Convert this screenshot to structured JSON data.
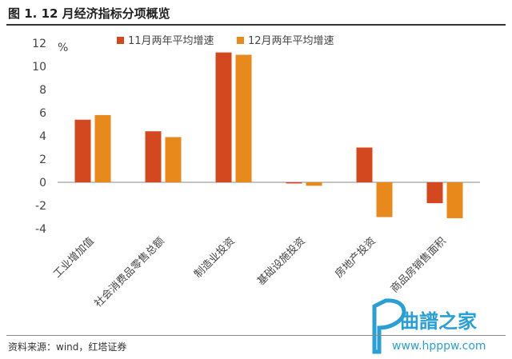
{
  "header": {
    "title": "图 1. 12 月经济指标分项概览"
  },
  "footer": {
    "source": "资料来源：wind，红塔证券"
  },
  "watermark": {
    "name": "曲譜之家",
    "url": "www.hpppw.com"
  },
  "chart_data": {
    "type": "bar",
    "categories": [
      "工业增加值",
      "社会消费品零售总额",
      "制造业投资",
      "基础设施投资",
      "房地产投资",
      "商品房销售面积"
    ],
    "series": [
      {
        "name": "11月两年平均增速",
        "color": "#d4481f",
        "values": [
          5.4,
          4.4,
          11.2,
          -0.1,
          3.0,
          -1.8
        ]
      },
      {
        "name": "12月两年平均增速",
        "color": "#e8891c",
        "values": [
          5.8,
          3.9,
          11.0,
          -0.3,
          -3.0,
          -3.1
        ]
      }
    ],
    "ylabel": "%",
    "ylim": [
      -4,
      12
    ],
    "yticks": [
      12,
      10,
      8,
      6,
      4,
      2,
      0,
      -2,
      -4
    ],
    "legend": "top"
  }
}
